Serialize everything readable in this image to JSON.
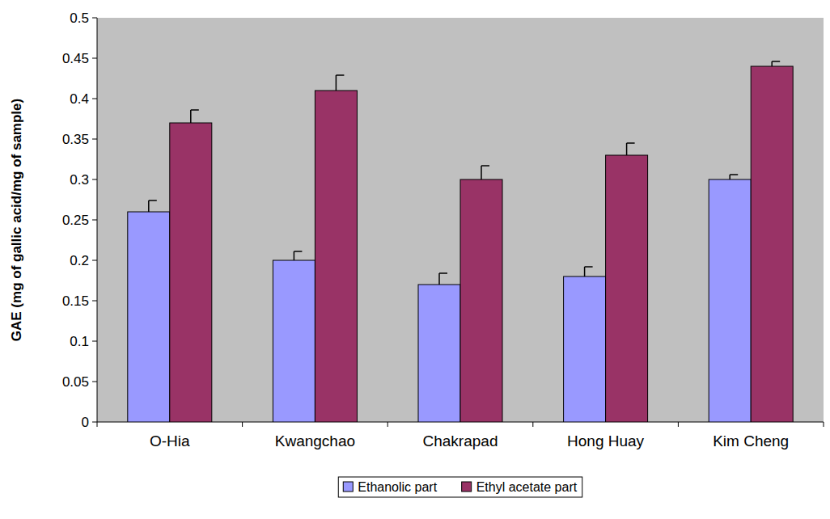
{
  "chart_data": {
    "type": "bar",
    "y_label": "GAE (mg of gallic acid/mg of sample)",
    "categories": [
      "O-Hia",
      "Kwangchao",
      "Chakrapad",
      "Hong Huay",
      "Kim Cheng"
    ],
    "series": [
      {
        "name": "Ethanolic part",
        "color": "#9999ff",
        "values": [
          0.26,
          0.2,
          0.17,
          0.18,
          0.3
        ],
        "errors": [
          0.014,
          0.011,
          0.014,
          0.012,
          0.006
        ]
      },
      {
        "name": "Ethyl acetate part",
        "color": "#993366",
        "values": [
          0.37,
          0.41,
          0.3,
          0.33,
          0.44
        ],
        "errors": [
          0.016,
          0.019,
          0.017,
          0.015,
          0.006
        ]
      }
    ],
    "ylim": [
      0,
      0.5
    ],
    "yticks": [
      0,
      0.05,
      0.1,
      0.15,
      0.2,
      0.25,
      0.3,
      0.35,
      0.4,
      0.45,
      0.5
    ],
    "grid": false,
    "legend": "bottom"
  }
}
